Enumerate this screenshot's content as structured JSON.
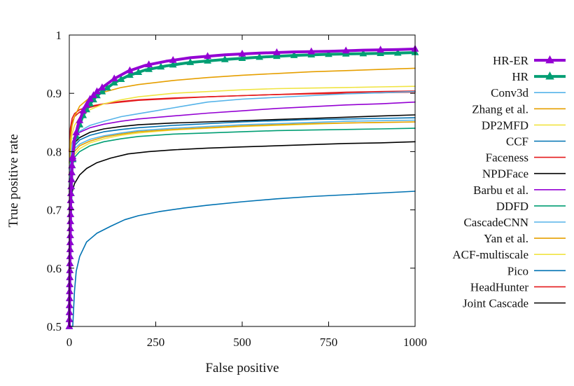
{
  "chart_data": {
    "type": "line",
    "title": "",
    "xlabel": "False positive",
    "ylabel": "True positive rate",
    "xlim": [
      0,
      1000
    ],
    "ylim": [
      0.5,
      1
    ],
    "x_ticks": [
      0,
      250,
      500,
      750,
      1000
    ],
    "x_tick_labels": [
      "0",
      "250",
      "500",
      "750",
      "1000"
    ],
    "y_ticks": [
      0.5,
      0.6,
      0.7,
      0.8,
      0.9,
      1
    ],
    "y_tick_labels": [
      "0.5",
      "0.6",
      "0.7",
      "0.8",
      "0.9",
      "1"
    ],
    "grid": false,
    "legend_position": "right",
    "series": [
      {
        "name": "HR-ER",
        "color": "#9400d3",
        "marker": "triangle",
        "emphasis": true,
        "points": [
          [
            0,
            0.5
          ],
          [
            2,
            0.62
          ],
          [
            4,
            0.72
          ],
          [
            8,
            0.78
          ],
          [
            15,
            0.82
          ],
          [
            25,
            0.845
          ],
          [
            40,
            0.87
          ],
          [
            60,
            0.89
          ],
          [
            80,
            0.903
          ],
          [
            100,
            0.912
          ],
          [
            130,
            0.925
          ],
          [
            170,
            0.938
          ],
          [
            220,
            0.948
          ],
          [
            280,
            0.955
          ],
          [
            350,
            0.961
          ],
          [
            450,
            0.966
          ],
          [
            550,
            0.969
          ],
          [
            650,
            0.971
          ],
          [
            750,
            0.972
          ],
          [
            850,
            0.974
          ],
          [
            950,
            0.975
          ],
          [
            1000,
            0.976
          ]
        ]
      },
      {
        "name": "HR",
        "color": "#009e73",
        "marker": "triangle",
        "emphasis": true,
        "points": [
          [
            0,
            0.5
          ],
          [
            2,
            0.61
          ],
          [
            4,
            0.71
          ],
          [
            8,
            0.775
          ],
          [
            15,
            0.815
          ],
          [
            25,
            0.838
          ],
          [
            40,
            0.862
          ],
          [
            60,
            0.882
          ],
          [
            80,
            0.896
          ],
          [
            100,
            0.905
          ],
          [
            130,
            0.918
          ],
          [
            170,
            0.93
          ],
          [
            220,
            0.94
          ],
          [
            280,
            0.947
          ],
          [
            350,
            0.953
          ],
          [
            450,
            0.958
          ],
          [
            550,
            0.962
          ],
          [
            650,
            0.965
          ],
          [
            750,
            0.967
          ],
          [
            850,
            0.968
          ],
          [
            950,
            0.969
          ],
          [
            1000,
            0.97
          ]
        ]
      },
      {
        "name": "Conv3d",
        "color": "#56b4e9",
        "points": [
          [
            0,
            0.74
          ],
          [
            3,
            0.78
          ],
          [
            8,
            0.81
          ],
          [
            15,
            0.825
          ],
          [
            30,
            0.835
          ],
          [
            60,
            0.845
          ],
          [
            100,
            0.852
          ],
          [
            150,
            0.86
          ],
          [
            200,
            0.865
          ],
          [
            250,
            0.87
          ],
          [
            300,
            0.875
          ],
          [
            350,
            0.88
          ],
          [
            400,
            0.885
          ],
          [
            500,
            0.89
          ],
          [
            600,
            0.893
          ],
          [
            700,
            0.896
          ],
          [
            800,
            0.899
          ],
          [
            900,
            0.901
          ],
          [
            1000,
            0.903
          ]
        ]
      },
      {
        "name": "Zhang et al.",
        "color": "#e69f00",
        "points": [
          [
            0,
            0.78
          ],
          [
            3,
            0.82
          ],
          [
            8,
            0.845
          ],
          [
            15,
            0.86
          ],
          [
            30,
            0.878
          ],
          [
            60,
            0.893
          ],
          [
            100,
            0.902
          ],
          [
            150,
            0.91
          ],
          [
            200,
            0.915
          ],
          [
            300,
            0.922
          ],
          [
            400,
            0.927
          ],
          [
            500,
            0.931
          ],
          [
            600,
            0.934
          ],
          [
            700,
            0.937
          ],
          [
            800,
            0.939
          ],
          [
            900,
            0.941
          ],
          [
            1000,
            0.943
          ]
        ]
      },
      {
        "name": "DP2MFD",
        "color": "#f0e442",
        "points": [
          [
            0,
            0.76
          ],
          [
            3,
            0.8
          ],
          [
            8,
            0.83
          ],
          [
            15,
            0.845
          ],
          [
            30,
            0.858
          ],
          [
            60,
            0.872
          ],
          [
            100,
            0.882
          ],
          [
            150,
            0.889
          ],
          [
            200,
            0.894
          ],
          [
            300,
            0.9
          ],
          [
            400,
            0.903
          ],
          [
            500,
            0.906
          ],
          [
            600,
            0.908
          ],
          [
            700,
            0.909
          ],
          [
            800,
            0.91
          ],
          [
            900,
            0.911
          ],
          [
            1000,
            0.912
          ]
        ]
      },
      {
        "name": "CCF",
        "color": "#0072b2",
        "points": [
          [
            0,
            0.75
          ],
          [
            3,
            0.785
          ],
          [
            8,
            0.8
          ],
          [
            15,
            0.81
          ],
          [
            30,
            0.82
          ],
          [
            60,
            0.828
          ],
          [
            100,
            0.834
          ],
          [
            150,
            0.838
          ],
          [
            200,
            0.841
          ],
          [
            300,
            0.845
          ],
          [
            400,
            0.848
          ],
          [
            500,
            0.851
          ],
          [
            600,
            0.853
          ],
          [
            700,
            0.855
          ],
          [
            800,
            0.856
          ],
          [
            900,
            0.857
          ],
          [
            1000,
            0.858
          ]
        ]
      },
      {
        "name": "Faceness",
        "color": "#e41a1c",
        "points": [
          [
            0,
            0.8
          ],
          [
            3,
            0.83
          ],
          [
            8,
            0.85
          ],
          [
            15,
            0.86
          ],
          [
            30,
            0.868
          ],
          [
            60,
            0.876
          ],
          [
            100,
            0.882
          ],
          [
            150,
            0.886
          ],
          [
            200,
            0.889
          ],
          [
            300,
            0.892
          ],
          [
            400,
            0.894
          ],
          [
            500,
            0.896
          ],
          [
            600,
            0.898
          ],
          [
            700,
            0.899
          ],
          [
            800,
            0.9
          ],
          [
            900,
            0.901
          ],
          [
            1000,
            0.902
          ]
        ]
      },
      {
        "name": "NPDFace",
        "color": "#000000",
        "points": [
          [
            0,
            0.76
          ],
          [
            3,
            0.79
          ],
          [
            8,
            0.805
          ],
          [
            15,
            0.815
          ],
          [
            30,
            0.824
          ],
          [
            60,
            0.833
          ],
          [
            100,
            0.839
          ],
          [
            150,
            0.843
          ],
          [
            200,
            0.846
          ],
          [
            300,
            0.849
          ],
          [
            400,
            0.851
          ],
          [
            500,
            0.853
          ],
          [
            600,
            0.855
          ],
          [
            700,
            0.857
          ],
          [
            800,
            0.859
          ],
          [
            900,
            0.861
          ],
          [
            1000,
            0.863
          ]
        ]
      },
      {
        "name": "Barbu et al.",
        "color": "#9400d3",
        "points": [
          [
            0,
            0.77
          ],
          [
            3,
            0.8
          ],
          [
            8,
            0.815
          ],
          [
            15,
            0.825
          ],
          [
            30,
            0.833
          ],
          [
            60,
            0.841
          ],
          [
            100,
            0.847
          ],
          [
            150,
            0.852
          ],
          [
            200,
            0.856
          ],
          [
            300,
            0.861
          ],
          [
            400,
            0.866
          ],
          [
            500,
            0.87
          ],
          [
            600,
            0.874
          ],
          [
            700,
            0.877
          ],
          [
            800,
            0.88
          ],
          [
            900,
            0.882
          ],
          [
            1000,
            0.885
          ]
        ]
      },
      {
        "name": "DDFD",
        "color": "#009e73",
        "points": [
          [
            0,
            0.73
          ],
          [
            3,
            0.76
          ],
          [
            8,
            0.78
          ],
          [
            15,
            0.79
          ],
          [
            30,
            0.8
          ],
          [
            60,
            0.81
          ],
          [
            100,
            0.817
          ],
          [
            150,
            0.822
          ],
          [
            200,
            0.826
          ],
          [
            300,
            0.83
          ],
          [
            400,
            0.832
          ],
          [
            500,
            0.834
          ],
          [
            600,
            0.836
          ],
          [
            700,
            0.837
          ],
          [
            800,
            0.838
          ],
          [
            900,
            0.839
          ],
          [
            1000,
            0.84
          ]
        ]
      },
      {
        "name": "CascadeCNN",
        "color": "#56b4e9",
        "points": [
          [
            0,
            0.75
          ],
          [
            3,
            0.78
          ],
          [
            8,
            0.795
          ],
          [
            15,
            0.805
          ],
          [
            30,
            0.813
          ],
          [
            60,
            0.821
          ],
          [
            100,
            0.827
          ],
          [
            150,
            0.832
          ],
          [
            200,
            0.836
          ],
          [
            300,
            0.84
          ],
          [
            400,
            0.843
          ],
          [
            500,
            0.846
          ],
          [
            600,
            0.848
          ],
          [
            700,
            0.85
          ],
          [
            800,
            0.852
          ],
          [
            900,
            0.853
          ],
          [
            1000,
            0.854
          ]
        ]
      },
      {
        "name": "Yan et al.",
        "color": "#e69f00",
        "points": [
          [
            0,
            0.74
          ],
          [
            3,
            0.77
          ],
          [
            8,
            0.79
          ],
          [
            15,
            0.8
          ],
          [
            30,
            0.81
          ],
          [
            60,
            0.818
          ],
          [
            100,
            0.825
          ],
          [
            150,
            0.83
          ],
          [
            200,
            0.834
          ],
          [
            300,
            0.838
          ],
          [
            400,
            0.841
          ],
          [
            500,
            0.844
          ],
          [
            600,
            0.846
          ],
          [
            700,
            0.848
          ],
          [
            800,
            0.849
          ],
          [
            900,
            0.85
          ],
          [
            1000,
            0.851
          ]
        ]
      },
      {
        "name": "ACF-multiscale",
        "color": "#f0e442",
        "points": [
          [
            0,
            0.73
          ],
          [
            3,
            0.76
          ],
          [
            8,
            0.78
          ],
          [
            15,
            0.795
          ],
          [
            30,
            0.805
          ],
          [
            60,
            0.815
          ],
          [
            100,
            0.822
          ],
          [
            150,
            0.828
          ],
          [
            200,
            0.832
          ],
          [
            300,
            0.837
          ],
          [
            400,
            0.84
          ],
          [
            500,
            0.843
          ],
          [
            600,
            0.845
          ],
          [
            700,
            0.847
          ],
          [
            800,
            0.849
          ],
          [
            900,
            0.85
          ],
          [
            1000,
            0.851
          ]
        ]
      },
      {
        "name": "Pico",
        "color": "#0072b2",
        "points": [
          [
            0,
            0.5
          ],
          [
            10,
            0.5
          ],
          [
            15,
            0.56
          ],
          [
            20,
            0.595
          ],
          [
            30,
            0.62
          ],
          [
            50,
            0.645
          ],
          [
            80,
            0.66
          ],
          [
            120,
            0.672
          ],
          [
            160,
            0.683
          ],
          [
            200,
            0.69
          ],
          [
            260,
            0.697
          ],
          [
            330,
            0.703
          ],
          [
            400,
            0.708
          ],
          [
            500,
            0.714
          ],
          [
            600,
            0.719
          ],
          [
            700,
            0.723
          ],
          [
            800,
            0.726
          ],
          [
            900,
            0.729
          ],
          [
            1000,
            0.732
          ]
        ]
      },
      {
        "name": "HeadHunter",
        "color": "#e41a1c",
        "points": [
          [
            0,
            0.8
          ],
          [
            3,
            0.84
          ],
          [
            8,
            0.857
          ],
          [
            15,
            0.865
          ],
          [
            30,
            0.872
          ],
          [
            60,
            0.878
          ],
          [
            100,
            0.882
          ],
          [
            150,
            0.885
          ],
          [
            200,
            0.888
          ],
          [
            300,
            0.891
          ],
          [
            400,
            0.894
          ],
          [
            500,
            0.896
          ],
          [
            600,
            0.898
          ],
          [
            700,
            0.9
          ],
          [
            800,
            0.902
          ],
          [
            900,
            0.903
          ],
          [
            1000,
            0.904
          ]
        ]
      },
      {
        "name": "Joint Cascade",
        "color": "#000000",
        "points": [
          [
            0,
            0.65
          ],
          [
            3,
            0.7
          ],
          [
            8,
            0.73
          ],
          [
            15,
            0.745
          ],
          [
            30,
            0.76
          ],
          [
            50,
            0.771
          ],
          [
            80,
            0.781
          ],
          [
            120,
            0.789
          ],
          [
            170,
            0.796
          ],
          [
            230,
            0.8
          ],
          [
            300,
            0.803
          ],
          [
            400,
            0.806
          ],
          [
            500,
            0.808
          ],
          [
            600,
            0.81
          ],
          [
            700,
            0.812
          ],
          [
            800,
            0.814
          ],
          [
            900,
            0.815
          ],
          [
            1000,
            0.817
          ]
        ]
      }
    ]
  }
}
